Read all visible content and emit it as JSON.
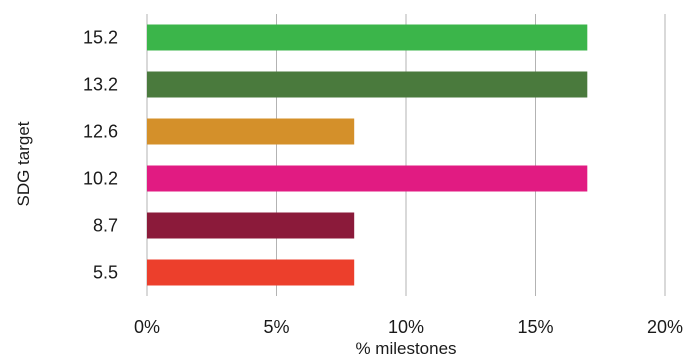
{
  "chart_data": {
    "type": "bar",
    "orientation": "horizontal",
    "categories": [
      "15.2",
      "13.2",
      "12.6",
      "10.2",
      "8.7",
      "5.5"
    ],
    "values": [
      17,
      17,
      8,
      17,
      8,
      8
    ],
    "colors": [
      "#3bb54a",
      "#4a7a3d",
      "#d4902a",
      "#e11b82",
      "#8b1a3a",
      "#ec3f2c"
    ],
    "xlabel": "% milestones",
    "ylabel": "SDG target",
    "xlim": [
      0,
      20
    ],
    "xticks": [
      "0%",
      "5%",
      "10%",
      "15%",
      "20%"
    ],
    "xtick_values": [
      0,
      5,
      10,
      15,
      20
    ],
    "grid": "vertical",
    "legend": "none"
  }
}
